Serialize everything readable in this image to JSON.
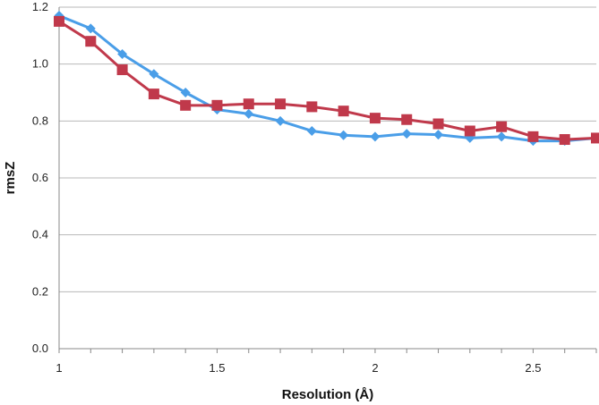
{
  "chart_data": {
    "type": "line",
    "title": "",
    "xlabel": "Resolution (Å)",
    "ylabel": "rmsZ",
    "xlim": [
      1,
      2.7
    ],
    "ylim": [
      0.0,
      1.2
    ],
    "x_ticks": [
      "1",
      "1.5",
      "2",
      "2.5"
    ],
    "x_tick_values": [
      1,
      1.5,
      2,
      2.5
    ],
    "y_ticks": [
      "0.0",
      "0.2",
      "0.4",
      "0.6",
      "0.8",
      "1.0",
      "1.2"
    ],
    "y_tick_values": [
      0.0,
      0.2,
      0.4,
      0.6,
      0.8,
      1.0,
      1.2
    ],
    "grid": "horizontal",
    "x": [
      1.0,
      1.1,
      1.2,
      1.3,
      1.4,
      1.5,
      1.6,
      1.7,
      1.8,
      1.9,
      2.0,
      2.1,
      2.2,
      2.3,
      2.4,
      2.5,
      2.6,
      2.7
    ],
    "series": [
      {
        "color": "#4a9ee8",
        "marker": "diamond",
        "values": [
          1.17,
          1.125,
          1.035,
          0.965,
          0.9,
          0.84,
          0.825,
          0.8,
          0.765,
          0.75,
          0.745,
          0.755,
          0.752,
          0.74,
          0.745,
          0.73,
          0.73,
          0.74
        ]
      },
      {
        "color": "#c0394b",
        "marker": "square",
        "values": [
          1.15,
          1.08,
          0.98,
          0.895,
          0.855,
          0.855,
          0.86,
          0.86,
          0.85,
          0.835,
          0.81,
          0.805,
          0.79,
          0.765,
          0.78,
          0.745,
          0.735,
          0.74
        ]
      }
    ]
  }
}
